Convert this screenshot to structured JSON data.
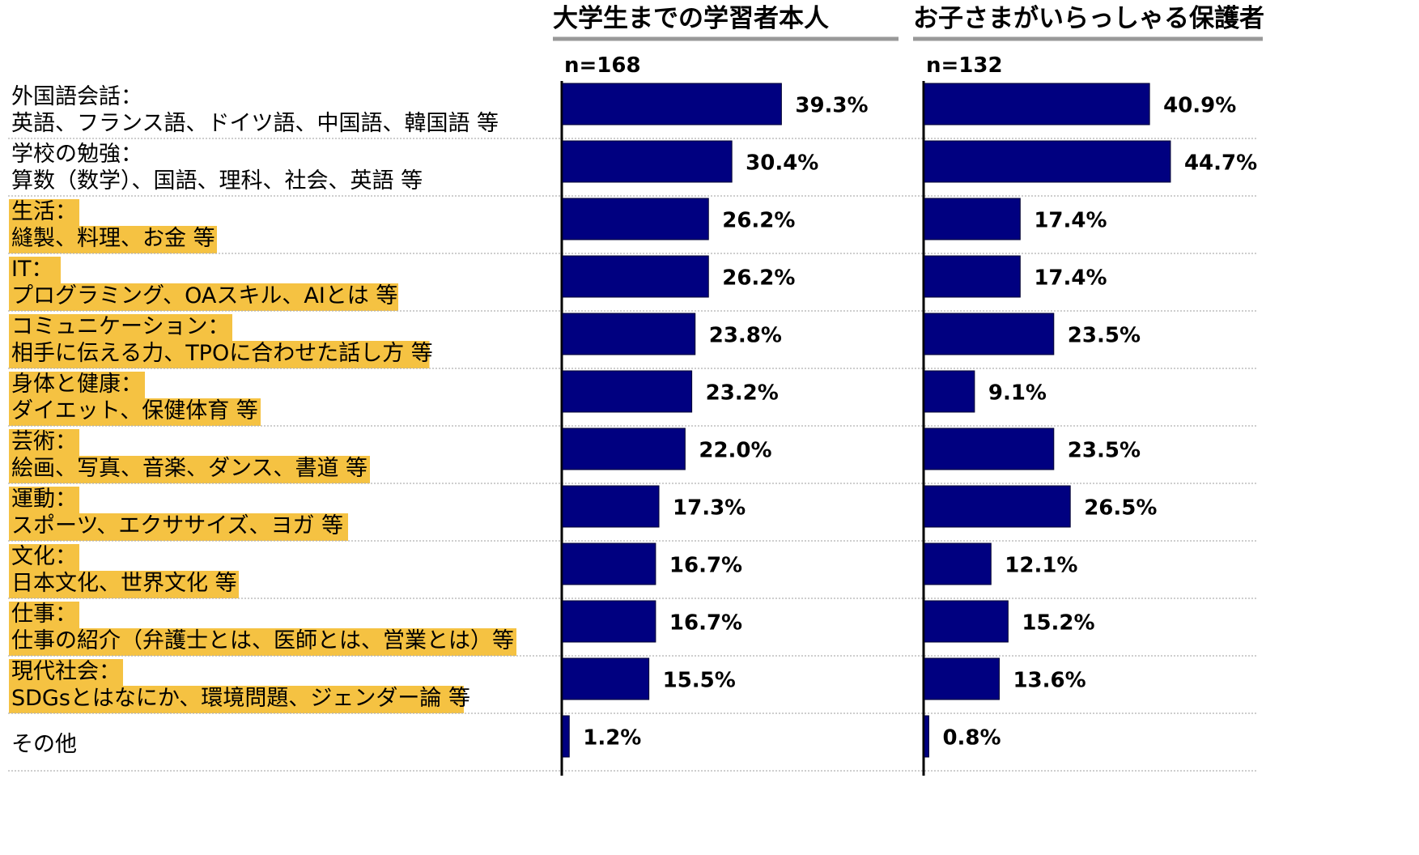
{
  "chart_data": {
    "type": "bar",
    "orientation": "horizontal",
    "categories": [
      {
        "title": "外国語会話：",
        "examples": "英語、フランス語、ドイツ語、中国語、韓国語 等",
        "highlighted": false
      },
      {
        "title": "学校の勉強：",
        "examples": "算数（数学）、国語、理科、社会、英語 等",
        "highlighted": false
      },
      {
        "title": "生活：",
        "examples": "縫製、料理、お金 等",
        "highlighted": true
      },
      {
        "title": "IT：",
        "examples": "プログラミング、OAスキル、AIとは 等",
        "highlighted": true
      },
      {
        "title": "コミュニケーション：",
        "examples": "相手に伝える力、TPOに合わせた話し方 等",
        "highlighted": true
      },
      {
        "title": "身体と健康：",
        "examples": "ダイエット、保健体育 等",
        "highlighted": true
      },
      {
        "title": "芸術：",
        "examples": "絵画、写真、音楽、ダンス、書道 等",
        "highlighted": true
      },
      {
        "title": "運動：",
        "examples": "スポーツ、エクササイズ、ヨガ 等",
        "highlighted": true
      },
      {
        "title": "文化：",
        "examples": "日本文化、世界文化 等",
        "highlighted": true
      },
      {
        "title": "仕事：",
        "examples": "仕事の紹介（弁護士とは、医師とは、営業とは）等",
        "highlighted": true
      },
      {
        "title": "現代社会：",
        "examples": "SDGsとはなにか、環境問題、ジェンダー論 等",
        "highlighted": true
      },
      {
        "title": "その他",
        "examples": "",
        "highlighted": false
      }
    ],
    "series": [
      {
        "name": "大学生までの学習者本人",
        "n": "n=168",
        "values": [
          39.3,
          30.4,
          26.2,
          26.2,
          23.8,
          23.2,
          22.0,
          17.3,
          16.7,
          16.7,
          15.5,
          1.2
        ],
        "labels": [
          "39.3%",
          "30.4%",
          "26.2%",
          "26.2%",
          "23.8%",
          "23.2%",
          "22.0%",
          "17.3%",
          "16.7%",
          "16.7%",
          "15.5%",
          "1.2%"
        ]
      },
      {
        "name": "お子さまがいらっしゃる保護者",
        "n": "n=132",
        "values": [
          40.9,
          44.7,
          17.4,
          17.4,
          23.5,
          9.1,
          23.5,
          26.5,
          12.1,
          15.2,
          13.6,
          0.8
        ],
        "labels": [
          "40.9%",
          "44.7%",
          "17.4%",
          "17.4%",
          "23.5%",
          "9.1%",
          "23.5%",
          "26.5%",
          "12.1%",
          "15.2%",
          "13.6%",
          "0.8%"
        ]
      }
    ],
    "unit": "%",
    "grid": false,
    "colors": {
      "bar": "#000080",
      "highlight": "#F5C242",
      "header_rule": "#999999",
      "row_separator": "#b0b0b0",
      "axis": "#000000"
    }
  }
}
